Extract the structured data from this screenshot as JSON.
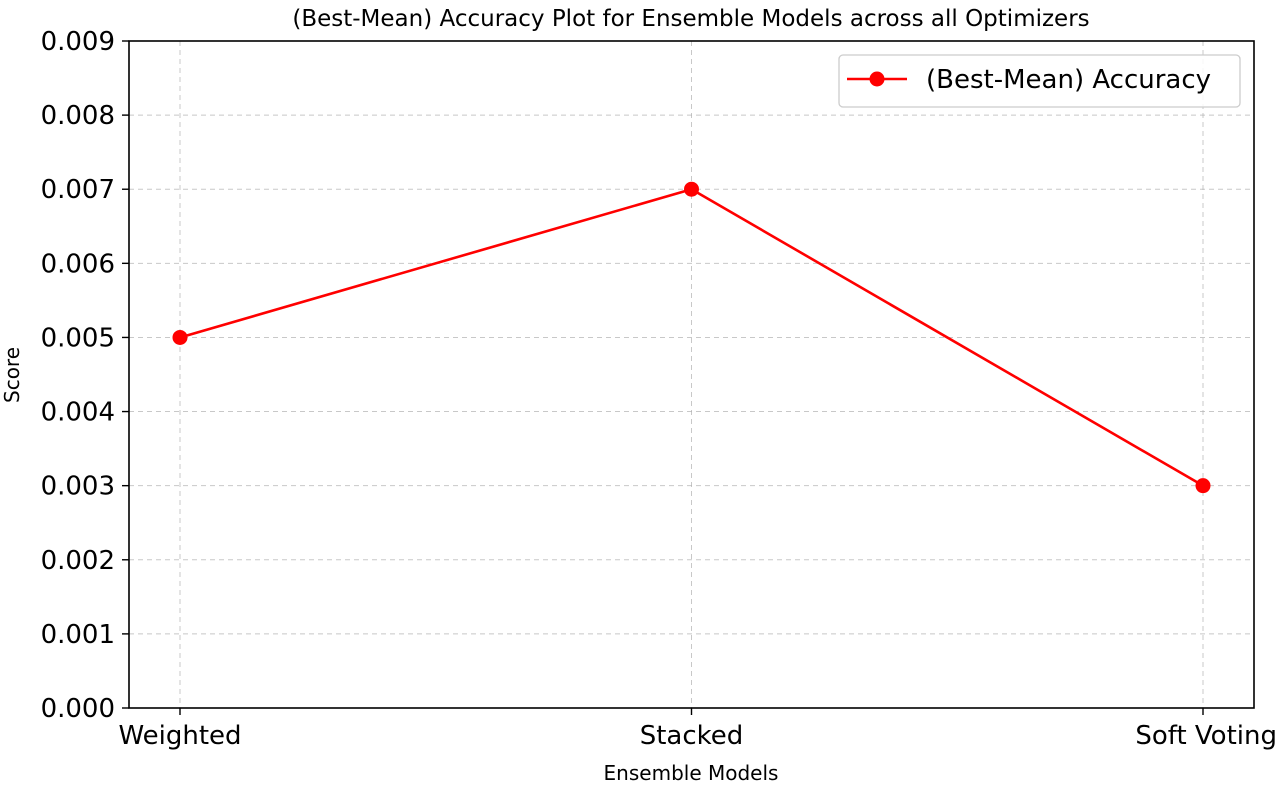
{
  "chart_data": {
    "type": "line",
    "title": "(Best-Mean) Accuracy Plot for Ensemble Models across all Optimizers",
    "xlabel": "Ensemble Models",
    "ylabel": "Score",
    "categories": [
      "Weighted",
      "Stacked",
      "Soft Voting"
    ],
    "series": [
      {
        "name": "(Best-Mean) Accuracy",
        "values": [
          0.005,
          0.007,
          0.003
        ],
        "color": "#ff0000",
        "marker": "circle"
      }
    ],
    "ylim": [
      0.0,
      0.009
    ],
    "yticks": [
      "0.000",
      "0.001",
      "0.002",
      "0.003",
      "0.004",
      "0.005",
      "0.006",
      "0.007",
      "0.008",
      "0.009"
    ],
    "grid": true,
    "grid_style": "dashed",
    "legend_position": "top-right"
  }
}
